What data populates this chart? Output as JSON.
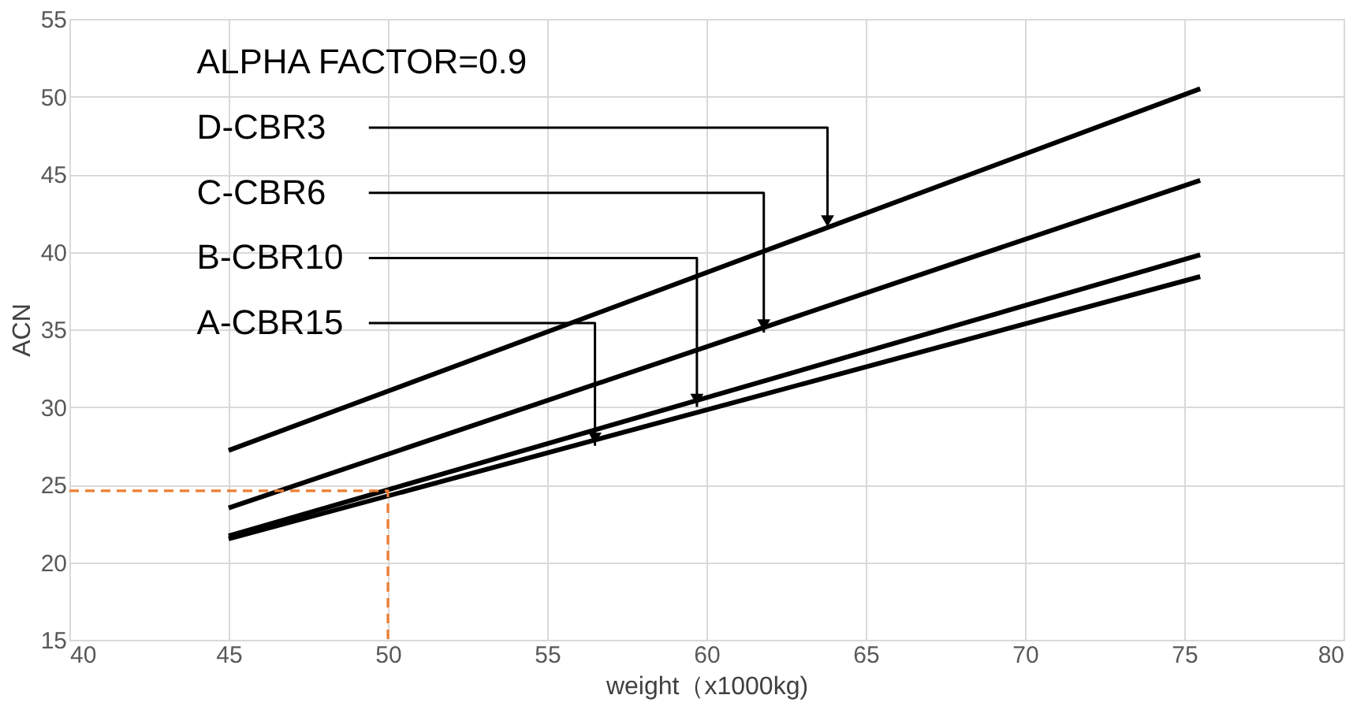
{
  "chart_data": {
    "type": "line",
    "xlabel": "weight（x1000kg)",
    "ylabel": "ACN",
    "xlim": [
      40,
      80
    ],
    "xticks": [
      40,
      45,
      50,
      55,
      60,
      65,
      70,
      75,
      80
    ],
    "ylim": [
      15,
      55
    ],
    "yticks": [
      15,
      20,
      25,
      30,
      35,
      40,
      45,
      50,
      55
    ],
    "grid": true,
    "marker": "none",
    "line_style": "solid",
    "series": [
      {
        "color": "#000000",
        "x": [
          45,
          75.5
        ],
        "values": [
          27.2,
          50.5
        ]
      },
      {
        "color": "#000000",
        "x": [
          45,
          75.5
        ],
        "values": [
          23.5,
          44.6
        ]
      },
      {
        "color": "#000000",
        "x": [
          45,
          75.5
        ],
        "values": [
          21.7,
          39.8
        ]
      },
      {
        "color": "#000000",
        "x": [
          45,
          75.5
        ],
        "values": [
          21.5,
          38.4
        ]
      },
      {
        "color": "#ed7d31",
        "line_style": "dashed",
        "x": [
          40,
          50,
          50
        ],
        "values": [
          24.6,
          24.6,
          15
        ]
      }
    ],
    "annotations": [
      "ALPHA FACTOR=0.9",
      {
        "text": "D-CBR3",
        "x": 63.8,
        "y": 41.5
      },
      {
        "text": "C-CBR6",
        "x": 61.8,
        "y": 34.8
      },
      {
        "text": "B-CBR10",
        "x": 59.7,
        "y": 30.0
      },
      {
        "text": "A-CBR15",
        "x": 56.5,
        "y": 27.5
      }
    ]
  }
}
